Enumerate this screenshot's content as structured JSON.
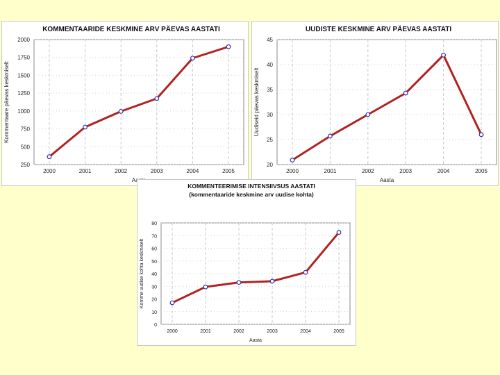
{
  "chart_data": [
    {
      "type": "line",
      "title": "KOMMENTAARIDE KESKMINE ARV PÄEVAS AASTATI",
      "xlabel": "Aasta",
      "ylabel": "Kommentaare päevas keskmiselt",
      "x": [
        "2000",
        "2001",
        "2002",
        "2003",
        "2004",
        "2005"
      ],
      "values": [
        360,
        775,
        995,
        1175,
        1740,
        1900
      ],
      "ylim": [
        250,
        2000
      ],
      "yticks": [
        "250",
        "500",
        "750",
        "1000",
        "1250",
        "1500",
        "1750",
        "2000"
      ],
      "grid": true,
      "line_color": "#b22222",
      "marker_color": "#3333aa"
    },
    {
      "type": "line",
      "title": "UUDISTE KESKMINE ARV PÄEVAS AASTATI",
      "xlabel": "Aasta",
      "ylabel": "Uudiseid päevas keskmiselt",
      "x": [
        "2000",
        "2001",
        "2002",
        "2003",
        "2004",
        "2005"
      ],
      "values": [
        20.9,
        25.7,
        30.0,
        34.3,
        41.9,
        26.0
      ],
      "ylim": [
        20,
        45
      ],
      "yticks": [
        "20",
        "25",
        "30",
        "35",
        "40",
        "45"
      ],
      "grid": true,
      "line_color": "#b22222",
      "marker_color": "#3333aa"
    },
    {
      "type": "line",
      "title": "KOMMENTEERIMISE INTENSIIVSUS AASTATI",
      "subtitle": "(kommentaaride keskmine arv uudise kohta)",
      "xlabel": "Aasta",
      "ylabel": "Komme uudise kohta keskmiselt",
      "x": [
        "2000",
        "2001",
        "2002",
        "2003",
        "2004",
        "2005"
      ],
      "values": [
        17,
        29.5,
        33,
        34,
        41,
        72.5
      ],
      "ylim": [
        0,
        80
      ],
      "yticks": [
        "0",
        "10",
        "20",
        "30",
        "40",
        "50",
        "60",
        "70",
        "80"
      ],
      "grid": true,
      "line_color": "#b22222",
      "marker_color": "#3333aa"
    }
  ]
}
